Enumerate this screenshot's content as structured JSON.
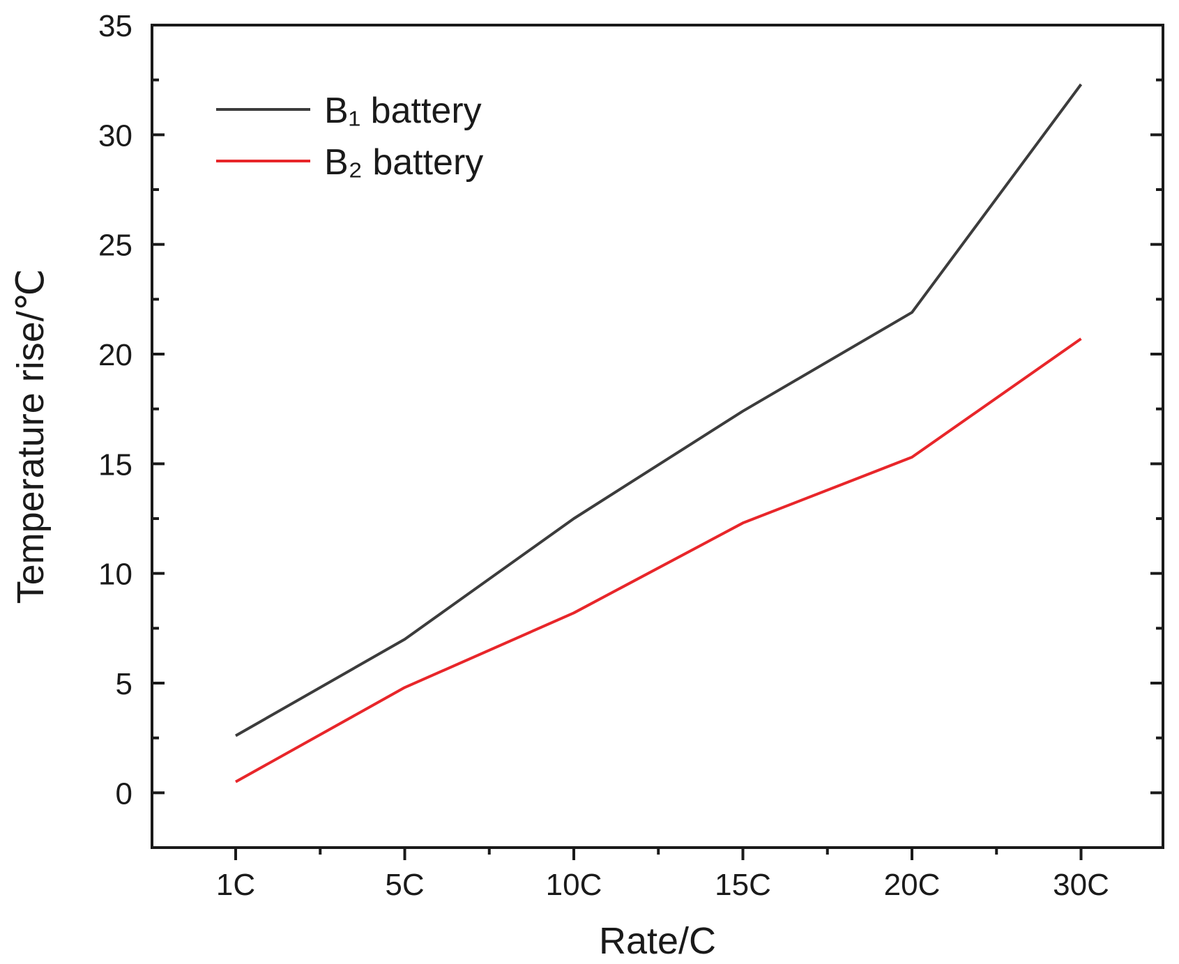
{
  "chart_data": {
    "type": "line",
    "title": "",
    "xlabel": "Rate/C",
    "ylabel": "Temperature rise/℃",
    "categories": [
      "1C",
      "5C",
      "10C",
      "15C",
      "20C",
      "30C"
    ],
    "ylim": [
      -2.5,
      35
    ],
    "yticks": [
      "0",
      "5",
      "10",
      "15",
      "20",
      "25",
      "30",
      "35"
    ],
    "legend_position": "top-left",
    "grid": false,
    "series": [
      {
        "name": "B₁ battery",
        "color": "#3c3c3c",
        "values": [
          2.6,
          7.0,
          12.5,
          17.4,
          21.9,
          32.3
        ]
      },
      {
        "name": "B₂ battery",
        "color": "#e8262a",
        "values": [
          0.5,
          4.8,
          8.2,
          12.3,
          15.3,
          20.7
        ]
      }
    ]
  }
}
